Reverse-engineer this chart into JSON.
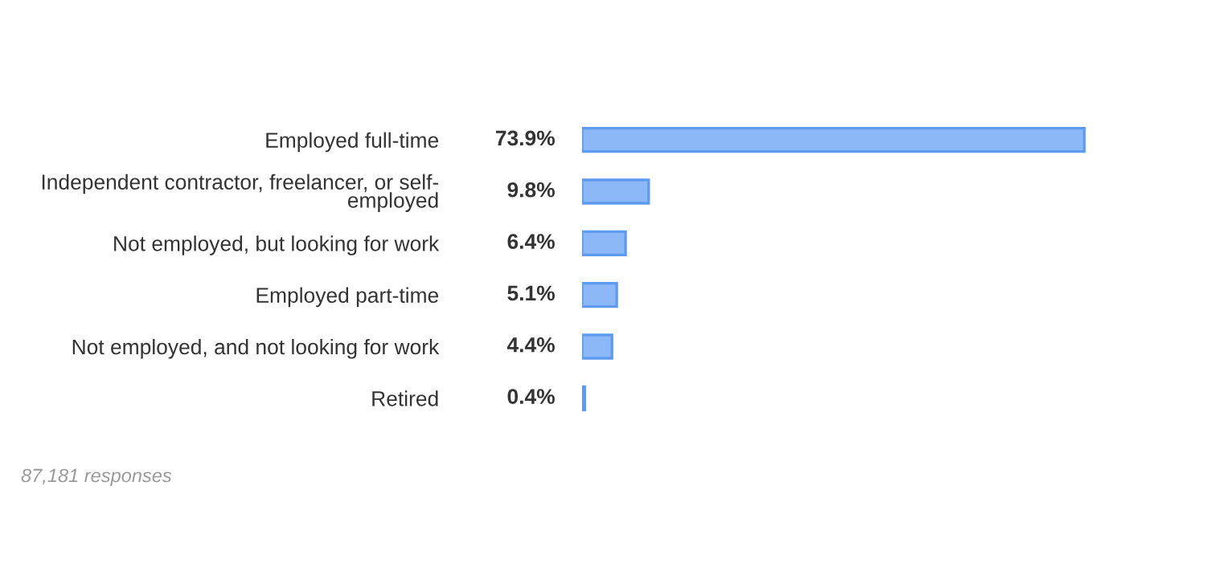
{
  "chart_data": {
    "type": "bar",
    "orientation": "horizontal",
    "categories": [
      "Employed full-time",
      "Independent contractor, freelancer, or self-\nemployed",
      "Not employed, but looking for work",
      "Employed part-time",
      "Not employed, and not looking for work",
      "Retired"
    ],
    "values": [
      73.9,
      9.8,
      6.4,
      5.1,
      4.4,
      0.4
    ],
    "value_labels": [
      "73.9%",
      "9.8%",
      "6.4%",
      "5.1%",
      "4.4%",
      "0.4%"
    ],
    "color": "#8cb8f7",
    "grid": false,
    "legend": false,
    "annotations": [
      "87,181 responses"
    ]
  }
}
